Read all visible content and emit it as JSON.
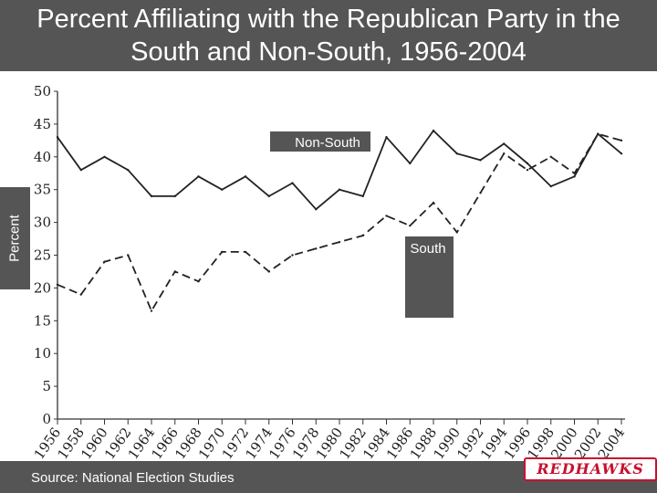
{
  "title": "Percent Affiliating with the Republican Party in the South and Non-South, 1956-2004",
  "source": "Source: National Election Studies",
  "logo_text": "REDHAWKS",
  "colors": {
    "bar": "#555555",
    "text_on_bar": "#ffffff",
    "line": "#222222",
    "logo": "#c8102e"
  },
  "chart_data": {
    "type": "line",
    "title": "Percent Affiliating with the Republican Party in the South and Non-South, 1956-2004",
    "xlabel": "",
    "ylabel": "Percent",
    "ylim": [
      0,
      50
    ],
    "yticks": [
      "0",
      "5",
      "10",
      "15",
      "20",
      "25",
      "30",
      "35",
      "40",
      "45",
      "50"
    ],
    "x": [
      "1956",
      "1958",
      "1960",
      "1962",
      "1964",
      "1966",
      "1968",
      "1970",
      "1972",
      "1974",
      "1976",
      "1978",
      "1980",
      "1982",
      "1984",
      "1986",
      "1988",
      "1990",
      "1992",
      "1994",
      "1996",
      "1998",
      "2000",
      "2002",
      "2004"
    ],
    "series": [
      {
        "name": "Non-South",
        "style": "solid",
        "values": [
          43,
          38,
          40,
          38,
          34,
          34,
          37,
          35,
          37,
          34,
          36,
          32,
          35,
          34,
          43,
          39,
          44,
          40.5,
          39.5,
          42,
          39,
          35.5,
          37,
          43.5,
          40.5
        ]
      },
      {
        "name": "South",
        "style": "dashed",
        "values": [
          20.5,
          19,
          24,
          25,
          16.5,
          22.5,
          21,
          25.5,
          25.5,
          22.5,
          25,
          26,
          27,
          28,
          31,
          29.5,
          33,
          28.5,
          34.5,
          40.5,
          38,
          40,
          37.5,
          43.5,
          42.5
        ]
      }
    ],
    "grid": false,
    "legend": "inline labels on the lines"
  }
}
